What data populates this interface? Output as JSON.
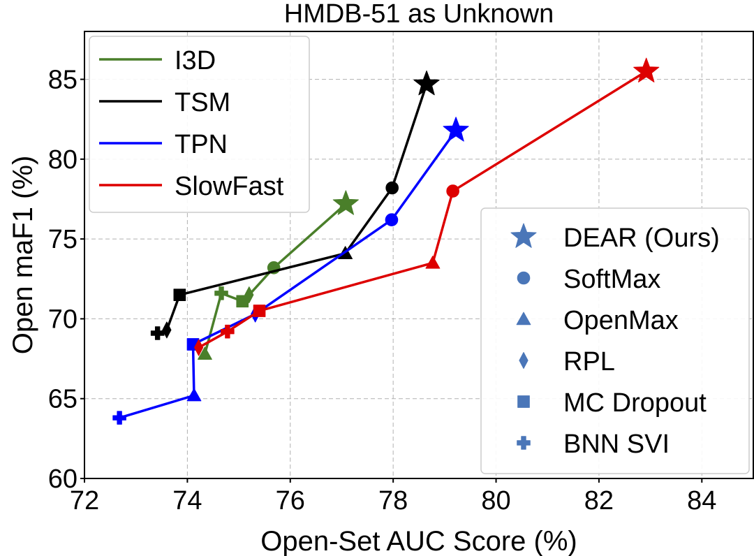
{
  "chart_data": {
    "type": "line",
    "title": "HMDB-51 as Unknown",
    "xlabel": "Open-Set AUC Score (%)",
    "ylabel": "Open maF1 (%)",
    "xlim": [
      72,
      85
    ],
    "ylim": [
      60,
      88
    ],
    "xticks": [
      72,
      74,
      76,
      78,
      80,
      82,
      84
    ],
    "yticks": [
      60,
      65,
      70,
      75,
      80,
      85
    ],
    "grid": true,
    "legend_models_position": "upper-left",
    "legend_methods_position": "lower-right",
    "methods": [
      {
        "key": "dear",
        "name": "DEAR (Ours)",
        "marker": "star"
      },
      {
        "key": "softmax",
        "name": "SoftMax",
        "marker": "circle"
      },
      {
        "key": "openmax",
        "name": "OpenMax",
        "marker": "triangle"
      },
      {
        "key": "rpl",
        "name": "RPL",
        "marker": "diamond"
      },
      {
        "key": "mcdropout",
        "name": "MC Dropout",
        "marker": "square"
      },
      {
        "key": "bnnsvi",
        "name": "BNN SVI",
        "marker": "plus"
      }
    ],
    "method_legend_color": "#4a76b8",
    "series": [
      {
        "name": "I3D",
        "color": "#4a7f2a",
        "points": [
          {
            "method": "openmax",
            "x": 74.34,
            "y": 67.8
          },
          {
            "method": "bnnsvi",
            "x": 74.66,
            "y": 71.6
          },
          {
            "method": "mcdropout",
            "x": 75.07,
            "y": 71.1
          },
          {
            "method": "rpl",
            "x": 75.2,
            "y": 71.5
          },
          {
            "method": "softmax",
            "x": 75.68,
            "y": 73.2
          },
          {
            "method": "dear",
            "x": 77.08,
            "y": 77.2
          }
        ]
      },
      {
        "name": "TSM",
        "color": "#000000",
        "points": [
          {
            "method": "bnnsvi",
            "x": 73.42,
            "y": 69.1
          },
          {
            "method": "rpl",
            "x": 73.6,
            "y": 69.3
          },
          {
            "method": "mcdropout",
            "x": 73.85,
            "y": 71.5
          },
          {
            "method": "openmax",
            "x": 77.07,
            "y": 74.1
          },
          {
            "method": "softmax",
            "x": 77.98,
            "y": 78.2
          },
          {
            "method": "dear",
            "x": 78.65,
            "y": 84.7
          }
        ]
      },
      {
        "name": "TPN",
        "color": "#0000ff",
        "points": [
          {
            "method": "bnnsvi",
            "x": 72.68,
            "y": 63.8
          },
          {
            "method": "openmax",
            "x": 74.13,
            "y": 65.2
          },
          {
            "method": "mcdropout",
            "x": 74.11,
            "y": 68.4
          },
          {
            "method": "rpl",
            "x": 75.32,
            "y": 70.3
          },
          {
            "method": "softmax",
            "x": 77.97,
            "y": 76.2
          },
          {
            "method": "dear",
            "x": 79.22,
            "y": 81.8
          }
        ]
      },
      {
        "name": "SlowFast",
        "color": "#dd0000",
        "points": [
          {
            "method": "rpl",
            "x": 74.22,
            "y": 68.2
          },
          {
            "method": "bnnsvi",
            "x": 74.78,
            "y": 69.2
          },
          {
            "method": "mcdropout",
            "x": 75.4,
            "y": 70.5
          },
          {
            "method": "openmax",
            "x": 78.77,
            "y": 73.5
          },
          {
            "method": "softmax",
            "x": 79.16,
            "y": 78.0
          },
          {
            "method": "dear",
            "x": 82.92,
            "y": 85.5
          }
        ]
      }
    ]
  }
}
